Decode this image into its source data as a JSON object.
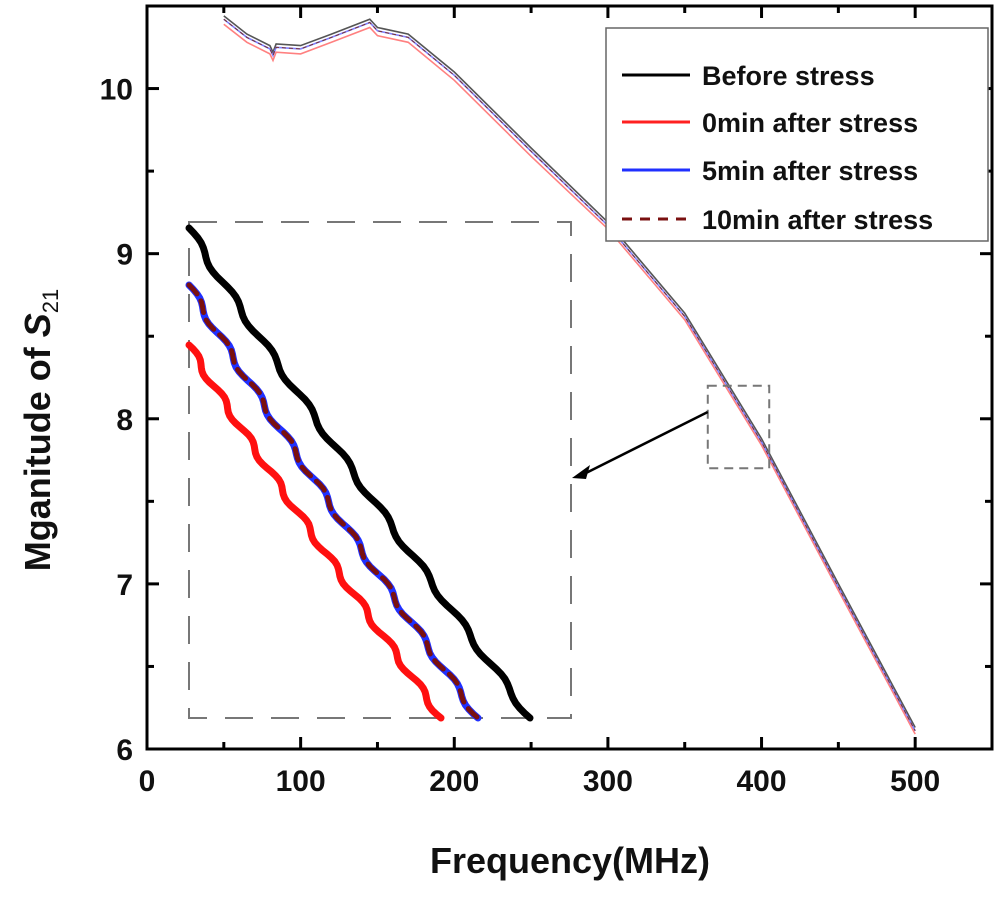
{
  "chart_data": {
    "type": "line",
    "title": "",
    "xlabel": "Frequency(MHz)",
    "ylabel_main": "Mganitude of ",
    "ylabel_symbol": "S",
    "ylabel_subscript": "21",
    "xlim": [
      0,
      550
    ],
    "ylim": [
      6,
      10.5
    ],
    "xticks": [
      0,
      100,
      200,
      300,
      400,
      500
    ],
    "xtick_labels": [
      "0",
      "100",
      "200",
      "300",
      "400",
      "500"
    ],
    "yticks": [
      6,
      7,
      8,
      9,
      10
    ],
    "ytick_labels": [
      "6",
      "7",
      "8",
      "9",
      "10"
    ],
    "grid": false,
    "legend_position": "top-right",
    "x": [
      50,
      65,
      80,
      82,
      84,
      100,
      120,
      145,
      150,
      170,
      200,
      250,
      300,
      350,
      400,
      450,
      500
    ],
    "series": [
      {
        "name": "Before stress",
        "color": "#000000",
        "style": "solid",
        "values": [
          10.44,
          10.33,
          10.26,
          10.22,
          10.27,
          10.26,
          10.33,
          10.42,
          10.37,
          10.33,
          10.1,
          9.64,
          9.19,
          8.64,
          7.88,
          7.0,
          6.13
        ]
      },
      {
        "name": "0min after stress",
        "color": "#ff2020",
        "style": "solid",
        "values": [
          10.39,
          10.28,
          10.21,
          10.17,
          10.22,
          10.21,
          10.28,
          10.37,
          10.32,
          10.28,
          10.05,
          9.59,
          9.15,
          8.6,
          7.84,
          6.96,
          6.09
        ]
      },
      {
        "name": "5min after stress",
        "color": "#2030ff",
        "style": "solid",
        "values": [
          10.42,
          10.31,
          10.24,
          10.2,
          10.25,
          10.24,
          10.31,
          10.4,
          10.35,
          10.31,
          10.08,
          9.62,
          9.17,
          8.62,
          7.86,
          6.98,
          6.11
        ]
      },
      {
        "name": "10min after stress",
        "color": "#7a1010",
        "style": "dashed",
        "values": [
          10.42,
          10.31,
          10.24,
          10.2,
          10.25,
          10.24,
          10.31,
          10.4,
          10.35,
          10.31,
          10.08,
          9.62,
          9.17,
          8.62,
          7.86,
          6.98,
          6.11
        ]
      }
    ],
    "inset_region": {
      "x": [
        365,
        405
      ],
      "y": [
        7.7,
        8.2
      ]
    }
  }
}
